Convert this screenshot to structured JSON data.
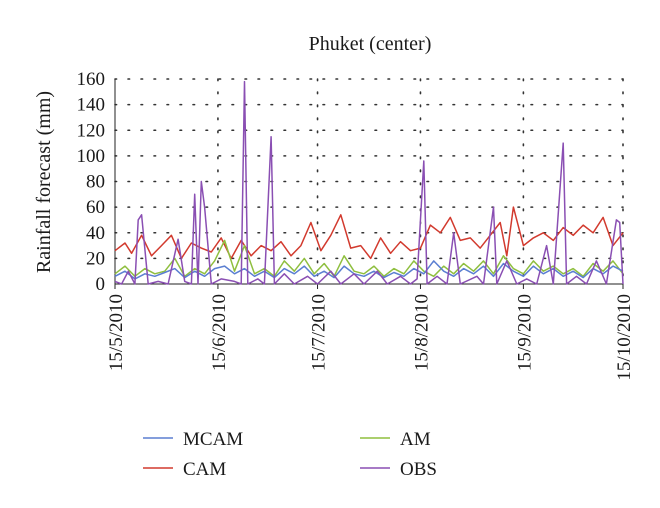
{
  "chart_data": {
    "type": "line",
    "title": "Phuket (center)",
    "xlabel": "",
    "ylabel": "Rainfall forecast (mm)",
    "ylim": [
      0,
      160
    ],
    "yticks": [
      0,
      20,
      40,
      60,
      80,
      100,
      120,
      140,
      160
    ],
    "x_range": [
      "2010-05-15",
      "2010-10-15"
    ],
    "xticks": [
      {
        "label": "15/5/2010",
        "date": "2010-05-15"
      },
      {
        "label": "15/6/2010",
        "date": "2010-06-15"
      },
      {
        "label": "15/7/2010",
        "date": "2010-07-15"
      },
      {
        "label": "15/8/2010",
        "date": "2010-08-15"
      },
      {
        "label": "15/9/2010",
        "date": "2010-09-15"
      },
      {
        "label": "15/10/2010",
        "date": "2010-10-15"
      }
    ],
    "grid": "dotted-horizontal-and-vertical",
    "legend_position": "bottom",
    "legend": [
      {
        "name": "MCAM",
        "color": "#5b7fd1"
      },
      {
        "name": "AM",
        "color": "#8fbf3f"
      },
      {
        "name": "CAM",
        "color": "#d23a2e"
      },
      {
        "name": "OBS",
        "color": "#8a4fb3"
      }
    ],
    "series": [
      {
        "name": "CAM",
        "color": "#d23a2e",
        "points": [
          [
            "2010-05-15",
            26
          ],
          [
            "2010-05-18",
            32
          ],
          [
            "2010-05-20",
            24
          ],
          [
            "2010-05-23",
            38
          ],
          [
            "2010-05-26",
            22
          ],
          [
            "2010-05-29",
            30
          ],
          [
            "2010-06-01",
            38
          ],
          [
            "2010-06-04",
            20
          ],
          [
            "2010-06-07",
            32
          ],
          [
            "2010-06-10",
            28
          ],
          [
            "2010-06-13",
            25
          ],
          [
            "2010-06-16",
            36
          ],
          [
            "2010-06-19",
            20
          ],
          [
            "2010-06-22",
            34
          ],
          [
            "2010-06-25",
            22
          ],
          [
            "2010-06-28",
            30
          ],
          [
            "2010-07-01",
            26
          ],
          [
            "2010-07-04",
            33
          ],
          [
            "2010-07-07",
            22
          ],
          [
            "2010-07-10",
            30
          ],
          [
            "2010-07-13",
            48
          ],
          [
            "2010-07-16",
            26
          ],
          [
            "2010-07-19",
            38
          ],
          [
            "2010-07-22",
            54
          ],
          [
            "2010-07-25",
            28
          ],
          [
            "2010-07-28",
            30
          ],
          [
            "2010-07-31",
            20
          ],
          [
            "2010-08-03",
            36
          ],
          [
            "2010-08-06",
            24
          ],
          [
            "2010-08-09",
            33
          ],
          [
            "2010-08-12",
            26
          ],
          [
            "2010-08-15",
            28
          ],
          [
            "2010-08-18",
            46
          ],
          [
            "2010-08-21",
            40
          ],
          [
            "2010-08-24",
            52
          ],
          [
            "2010-08-27",
            34
          ],
          [
            "2010-08-30",
            36
          ],
          [
            "2010-09-02",
            28
          ],
          [
            "2010-09-05",
            38
          ],
          [
            "2010-09-08",
            48
          ],
          [
            "2010-09-10",
            22
          ],
          [
            "2010-09-12",
            60
          ],
          [
            "2010-09-15",
            30
          ],
          [
            "2010-09-18",
            36
          ],
          [
            "2010-09-21",
            40
          ],
          [
            "2010-09-24",
            34
          ],
          [
            "2010-09-27",
            44
          ],
          [
            "2010-09-30",
            38
          ],
          [
            "2010-10-03",
            46
          ],
          [
            "2010-10-06",
            40
          ],
          [
            "2010-10-09",
            52
          ],
          [
            "2010-10-12",
            30
          ],
          [
            "2010-10-15",
            40
          ]
        ]
      },
      {
        "name": "AM",
        "color": "#8fbf3f",
        "points": [
          [
            "2010-05-15",
            8
          ],
          [
            "2010-05-18",
            14
          ],
          [
            "2010-05-21",
            6
          ],
          [
            "2010-05-24",
            12
          ],
          [
            "2010-05-27",
            8
          ],
          [
            "2010-05-30",
            10
          ],
          [
            "2010-06-02",
            20
          ],
          [
            "2010-06-05",
            6
          ],
          [
            "2010-06-08",
            12
          ],
          [
            "2010-06-11",
            8
          ],
          [
            "2010-06-14",
            18
          ],
          [
            "2010-06-17",
            34
          ],
          [
            "2010-06-20",
            10
          ],
          [
            "2010-06-23",
            30
          ],
          [
            "2010-06-26",
            8
          ],
          [
            "2010-06-29",
            12
          ],
          [
            "2010-07-02",
            6
          ],
          [
            "2010-07-05",
            18
          ],
          [
            "2010-07-08",
            10
          ],
          [
            "2010-07-11",
            20
          ],
          [
            "2010-07-14",
            8
          ],
          [
            "2010-07-17",
            16
          ],
          [
            "2010-07-20",
            6
          ],
          [
            "2010-07-23",
            22
          ],
          [
            "2010-07-26",
            10
          ],
          [
            "2010-07-29",
            8
          ],
          [
            "2010-08-01",
            14
          ],
          [
            "2010-08-04",
            6
          ],
          [
            "2010-08-07",
            12
          ],
          [
            "2010-08-10",
            8
          ],
          [
            "2010-08-13",
            18
          ],
          [
            "2010-08-16",
            10
          ],
          [
            "2010-08-19",
            6
          ],
          [
            "2010-08-22",
            14
          ],
          [
            "2010-08-25",
            8
          ],
          [
            "2010-08-28",
            16
          ],
          [
            "2010-08-31",
            10
          ],
          [
            "2010-09-03",
            18
          ],
          [
            "2010-09-06",
            8
          ],
          [
            "2010-09-09",
            22
          ],
          [
            "2010-09-12",
            12
          ],
          [
            "2010-09-15",
            8
          ],
          [
            "2010-09-18",
            18
          ],
          [
            "2010-09-21",
            10
          ],
          [
            "2010-09-24",
            14
          ],
          [
            "2010-09-27",
            8
          ],
          [
            "2010-09-30",
            12
          ],
          [
            "2010-10-03",
            6
          ],
          [
            "2010-10-06",
            16
          ],
          [
            "2010-10-09",
            10
          ],
          [
            "2010-10-12",
            18
          ],
          [
            "2010-10-15",
            8
          ]
        ]
      },
      {
        "name": "MCAM",
        "color": "#5b7fd1",
        "points": [
          [
            "2010-05-15",
            6
          ],
          [
            "2010-05-18",
            10
          ],
          [
            "2010-05-21",
            4
          ],
          [
            "2010-05-24",
            8
          ],
          [
            "2010-05-27",
            6
          ],
          [
            "2010-05-30",
            9
          ],
          [
            "2010-06-02",
            12
          ],
          [
            "2010-06-05",
            5
          ],
          [
            "2010-06-08",
            10
          ],
          [
            "2010-06-11",
            6
          ],
          [
            "2010-06-14",
            12
          ],
          [
            "2010-06-17",
            14
          ],
          [
            "2010-06-20",
            8
          ],
          [
            "2010-06-23",
            12
          ],
          [
            "2010-06-26",
            6
          ],
          [
            "2010-06-29",
            10
          ],
          [
            "2010-07-02",
            5
          ],
          [
            "2010-07-05",
            12
          ],
          [
            "2010-07-08",
            8
          ],
          [
            "2010-07-11",
            14
          ],
          [
            "2010-07-14",
            6
          ],
          [
            "2010-07-17",
            10
          ],
          [
            "2010-07-20",
            5
          ],
          [
            "2010-07-23",
            14
          ],
          [
            "2010-07-26",
            8
          ],
          [
            "2010-07-29",
            6
          ],
          [
            "2010-08-01",
            10
          ],
          [
            "2010-08-04",
            5
          ],
          [
            "2010-08-07",
            9
          ],
          [
            "2010-08-10",
            6
          ],
          [
            "2010-08-13",
            12
          ],
          [
            "2010-08-16",
            8
          ],
          [
            "2010-08-19",
            18
          ],
          [
            "2010-08-22",
            10
          ],
          [
            "2010-08-25",
            6
          ],
          [
            "2010-08-28",
            12
          ],
          [
            "2010-08-31",
            8
          ],
          [
            "2010-09-03",
            14
          ],
          [
            "2010-09-06",
            6
          ],
          [
            "2010-09-09",
            16
          ],
          [
            "2010-09-12",
            10
          ],
          [
            "2010-09-15",
            6
          ],
          [
            "2010-09-18",
            14
          ],
          [
            "2010-09-21",
            8
          ],
          [
            "2010-09-24",
            12
          ],
          [
            "2010-09-27",
            6
          ],
          [
            "2010-09-30",
            10
          ],
          [
            "2010-10-03",
            5
          ],
          [
            "2010-10-06",
            12
          ],
          [
            "2010-10-09",
            8
          ],
          [
            "2010-10-12",
            14
          ],
          [
            "2010-10-15",
            10
          ]
        ]
      },
      {
        "name": "OBS",
        "color": "#8a4fb3",
        "points": [
          [
            "2010-05-15",
            2
          ],
          [
            "2010-05-17",
            0
          ],
          [
            "2010-05-19",
            10
          ],
          [
            "2010-05-21",
            0
          ],
          [
            "2010-05-22",
            50
          ],
          [
            "2010-05-23",
            54
          ],
          [
            "2010-05-25",
            0
          ],
          [
            "2010-05-28",
            2
          ],
          [
            "2010-05-31",
            0
          ],
          [
            "2010-06-03",
            35
          ],
          [
            "2010-06-05",
            2
          ],
          [
            "2010-06-07",
            0
          ],
          [
            "2010-06-08",
            70
          ],
          [
            "2010-06-09",
            0
          ],
          [
            "2010-06-10",
            80
          ],
          [
            "2010-06-11",
            60
          ],
          [
            "2010-06-13",
            0
          ],
          [
            "2010-06-16",
            4
          ],
          [
            "2010-06-20",
            2
          ],
          [
            "2010-06-22",
            0
          ],
          [
            "2010-06-23",
            158
          ],
          [
            "2010-06-24",
            0
          ],
          [
            "2010-06-27",
            4
          ],
          [
            "2010-06-29",
            0
          ],
          [
            "2010-07-01",
            115
          ],
          [
            "2010-07-02",
            0
          ],
          [
            "2010-07-05",
            8
          ],
          [
            "2010-07-08",
            0
          ],
          [
            "2010-07-12",
            6
          ],
          [
            "2010-07-15",
            0
          ],
          [
            "2010-07-19",
            10
          ],
          [
            "2010-07-22",
            0
          ],
          [
            "2010-07-26",
            8
          ],
          [
            "2010-07-29",
            0
          ],
          [
            "2010-08-02",
            10
          ],
          [
            "2010-08-05",
            0
          ],
          [
            "2010-08-09",
            6
          ],
          [
            "2010-08-12",
            0
          ],
          [
            "2010-08-14",
            4
          ],
          [
            "2010-08-16",
            96
          ],
          [
            "2010-08-17",
            0
          ],
          [
            "2010-08-20",
            6
          ],
          [
            "2010-08-23",
            0
          ],
          [
            "2010-08-25",
            40
          ],
          [
            "2010-08-27",
            0
          ],
          [
            "2010-09-01",
            6
          ],
          [
            "2010-09-03",
            0
          ],
          [
            "2010-09-06",
            60
          ],
          [
            "2010-09-07",
            0
          ],
          [
            "2010-09-10",
            18
          ],
          [
            "2010-09-13",
            0
          ],
          [
            "2010-09-16",
            4
          ],
          [
            "2010-09-19",
            0
          ],
          [
            "2010-09-22",
            30
          ],
          [
            "2010-09-24",
            0
          ],
          [
            "2010-09-27",
            110
          ],
          [
            "2010-09-28",
            0
          ],
          [
            "2010-10-01",
            6
          ],
          [
            "2010-10-04",
            0
          ],
          [
            "2010-10-07",
            18
          ],
          [
            "2010-10-10",
            0
          ],
          [
            "2010-10-13",
            50
          ],
          [
            "2010-10-14",
            48
          ],
          [
            "2010-10-15",
            0
          ]
        ]
      }
    ]
  }
}
